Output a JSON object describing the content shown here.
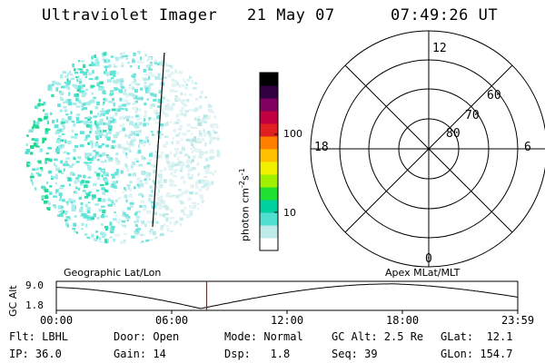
{
  "header": {
    "title": "Ultraviolet Imager",
    "date": "21 May 07",
    "time": "07:49:26 UT"
  },
  "colorbar": {
    "label": "photon cm",
    "exp1": "-2",
    "mid": "s",
    "exp2": "-1",
    "ticks": [
      {
        "label": "100",
        "value": 100
      },
      {
        "label": "10",
        "value": 10
      }
    ],
    "colors": [
      "#ffffff",
      "#bfeaea",
      "#50e0d0",
      "#00d0a0",
      "#20e030",
      "#a0f000",
      "#f0f000",
      "#ffc000",
      "#ff8000",
      "#e02020",
      "#c00040",
      "#800060",
      "#300040",
      "#000000"
    ]
  },
  "polar": {
    "mlt_labels": {
      "top": "12",
      "bottom": "0",
      "left": "18",
      "right": "6"
    },
    "lat_labels": [
      "60",
      "70",
      "80"
    ]
  },
  "timeline": {
    "left_label": "Geographic Lat/Lon",
    "right_label": "Apex MLat/MLT",
    "axis_title": "GC Alt",
    "y_ticks": [
      "9.0",
      "1.8"
    ],
    "x_ticks": [
      "00:00",
      "06:00",
      "12:00",
      "18:00",
      "23:59"
    ],
    "current_time_hours": 7.82
  },
  "info": {
    "flt": "Flt: LBHL",
    "ip": "IP: 36.0",
    "door": "Door: Open",
    "gain": "Gain: 14",
    "mode": "Mode: Normal",
    "dsp": "Dsp:   1.8",
    "gcalt": "GC Alt: 2.5 Re",
    "seq": "Seq: 39",
    "glat": "GLat:  12.1",
    "glon": "GLon: 154.7"
  }
}
